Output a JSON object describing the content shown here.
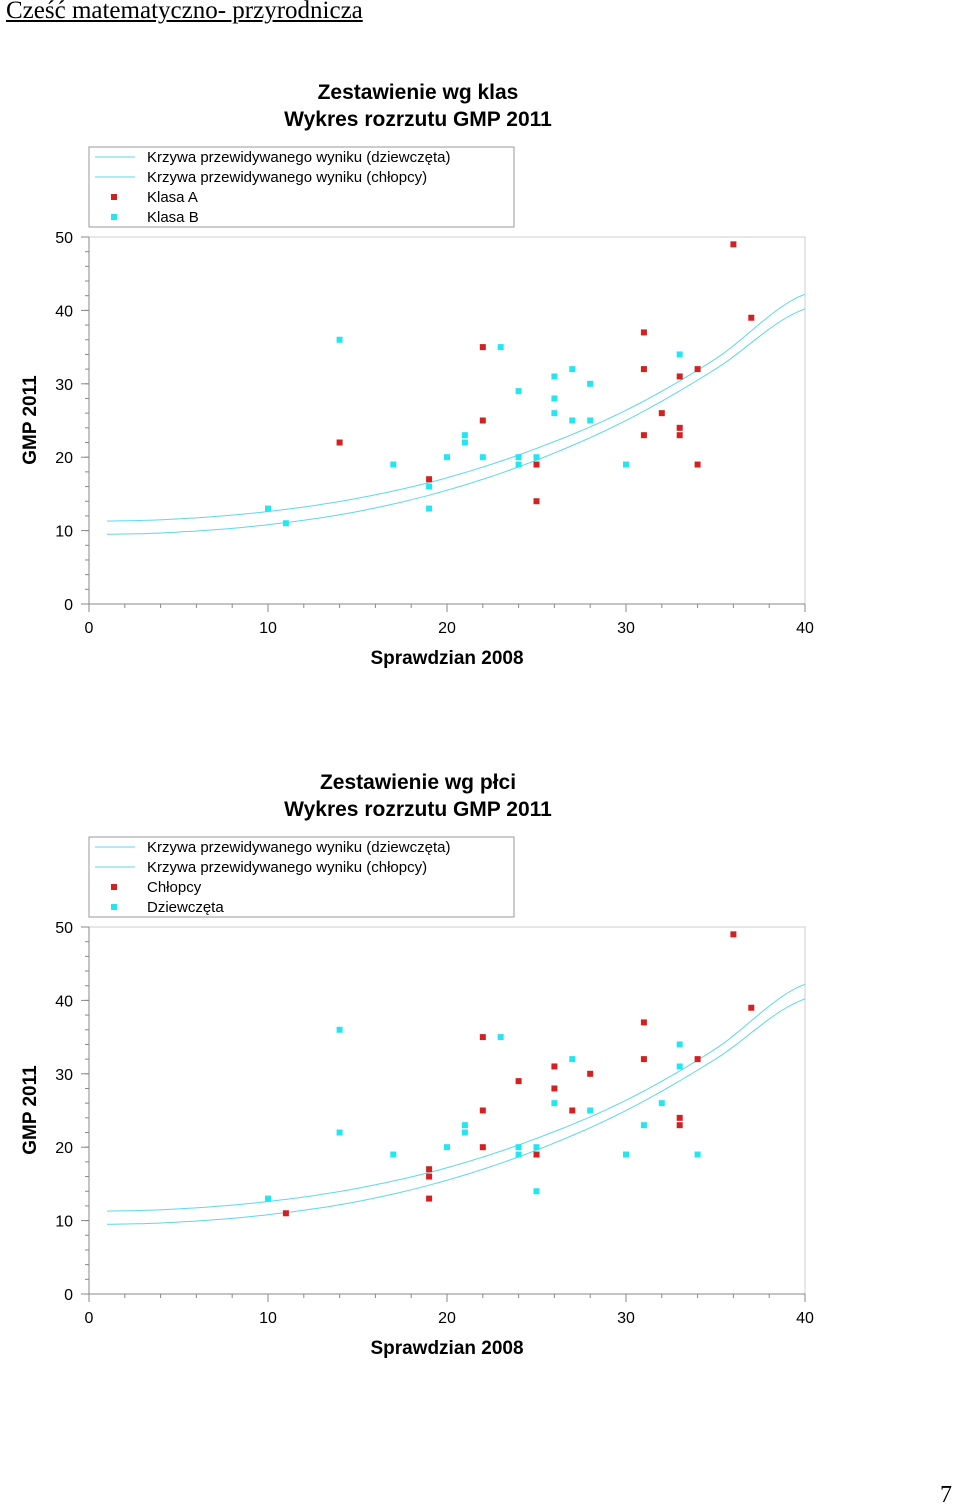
{
  "page": {
    "heading": "Cześć matematyczno- przyrodnicza",
    "page_number": "7"
  },
  "colors": {
    "red": "#d42020",
    "cyan": "#22e6f2",
    "curve": "#5ed7ec"
  },
  "chart_data": [
    {
      "type": "scatter",
      "title": "Zestawienie wg klas",
      "subtitle": "Wykres rozrzutu GMP 2011",
      "xlabel": "Sprawdzian 2008",
      "ylabel": "GMP 2011",
      "xlim": [
        0,
        40
      ],
      "ylim": [
        0,
        50
      ],
      "xticks": [
        0,
        10,
        20,
        30,
        40
      ],
      "yticks": [
        0,
        10,
        20,
        30,
        40,
        50
      ],
      "grid": false,
      "legend_position": "top-left",
      "curves": [
        {
          "name": "Krzywa przewidywanego wyniku (dziewczęta)",
          "x": [
            1,
            5,
            10,
            15,
            20,
            25,
            30,
            35,
            40
          ],
          "y": [
            11.3,
            11.6,
            12.6,
            14.4,
            17.2,
            21.2,
            26.4,
            33.4,
            42.2
          ]
        },
        {
          "name": "Krzywa przewidywanego wyniku (chłopcy)",
          "x": [
            1,
            5,
            10,
            15,
            20,
            25,
            30,
            35,
            40
          ],
          "y": [
            9.5,
            9.8,
            10.8,
            12.6,
            15.5,
            19.6,
            25.0,
            32.0,
            40.2
          ]
        }
      ],
      "series": [
        {
          "name": "Klasa A",
          "color": "red",
          "points": [
            [
              14,
              22
            ],
            [
              19,
              17
            ],
            [
              22,
              35
            ],
            [
              22,
              25
            ],
            [
              25,
              19
            ],
            [
              25,
              14
            ],
            [
              31,
              37
            ],
            [
              31,
              32
            ],
            [
              31,
              23
            ],
            [
              32,
              26
            ],
            [
              33,
              31
            ],
            [
              33,
              24
            ],
            [
              33,
              23
            ],
            [
              34,
              32
            ],
            [
              34,
              19
            ],
            [
              36,
              49
            ],
            [
              37,
              39
            ]
          ]
        },
        {
          "name": "Klasa B",
          "color": "cyan",
          "points": [
            [
              10,
              13
            ],
            [
              11,
              11
            ],
            [
              14,
              36
            ],
            [
              17,
              19
            ],
            [
              19,
              16
            ],
            [
              19,
              13
            ],
            [
              20,
              20
            ],
            [
              21,
              23
            ],
            [
              21,
              22
            ],
            [
              22,
              20
            ],
            [
              23,
              35
            ],
            [
              24,
              29
            ],
            [
              24,
              20
            ],
            [
              24,
              19
            ],
            [
              25,
              20
            ],
            [
              26,
              31
            ],
            [
              26,
              28
            ],
            [
              26,
              26
            ],
            [
              27,
              32
            ],
            [
              27,
              25
            ],
            [
              28,
              30
            ],
            [
              28,
              25
            ],
            [
              30,
              19
            ],
            [
              33,
              34
            ]
          ]
        }
      ]
    },
    {
      "type": "scatter",
      "title": "Zestawienie wg płci",
      "subtitle": "Wykres rozrzutu GMP 2011",
      "xlabel": "Sprawdzian 2008",
      "ylabel": "GMP 2011",
      "xlim": [
        0,
        40
      ],
      "ylim": [
        0,
        50
      ],
      "xticks": [
        0,
        10,
        20,
        30,
        40
      ],
      "yticks": [
        0,
        10,
        20,
        30,
        40,
        50
      ],
      "grid": false,
      "legend_position": "top-left",
      "curves": [
        {
          "name": "Krzywa przewidywanego wyniku (dziewczęta)",
          "x": [
            1,
            5,
            10,
            15,
            20,
            25,
            30,
            35,
            40
          ],
          "y": [
            11.3,
            11.6,
            12.6,
            14.4,
            17.2,
            21.2,
            26.4,
            33.4,
            42.2
          ]
        },
        {
          "name": "Krzywa przewidywanego wyniku (chłopcy)",
          "x": [
            1,
            5,
            10,
            15,
            20,
            25,
            30,
            35,
            40
          ],
          "y": [
            9.5,
            9.8,
            10.8,
            12.6,
            15.5,
            19.6,
            25.0,
            32.0,
            40.2
          ]
        }
      ],
      "series": [
        {
          "name": "Chłopcy",
          "color": "red",
          "points": [
            [
              11,
              11
            ],
            [
              19,
              17
            ],
            [
              19,
              16
            ],
            [
              19,
              13
            ],
            [
              22,
              35
            ],
            [
              22,
              25
            ],
            [
              22,
              20
            ],
            [
              24,
              29
            ],
            [
              25,
              19
            ],
            [
              26,
              31
            ],
            [
              26,
              28
            ],
            [
              27,
              25
            ],
            [
              28,
              30
            ],
            [
              31,
              37
            ],
            [
              31,
              32
            ],
            [
              33,
              24
            ],
            [
              33,
              23
            ],
            [
              34,
              32
            ],
            [
              36,
              49
            ],
            [
              37,
              39
            ]
          ]
        },
        {
          "name": "Dziewczęta",
          "color": "cyan",
          "points": [
            [
              10,
              13
            ],
            [
              14,
              36
            ],
            [
              14,
              22
            ],
            [
              17,
              19
            ],
            [
              20,
              20
            ],
            [
              21,
              23
            ],
            [
              21,
              22
            ],
            [
              23,
              35
            ],
            [
              24,
              20
            ],
            [
              24,
              19
            ],
            [
              25,
              20
            ],
            [
              25,
              14
            ],
            [
              26,
              26
            ],
            [
              27,
              32
            ],
            [
              28,
              25
            ],
            [
              30,
              19
            ],
            [
              31,
              23
            ],
            [
              32,
              26
            ],
            [
              33,
              34
            ],
            [
              33,
              31
            ],
            [
              34,
              19
            ]
          ]
        }
      ]
    }
  ]
}
